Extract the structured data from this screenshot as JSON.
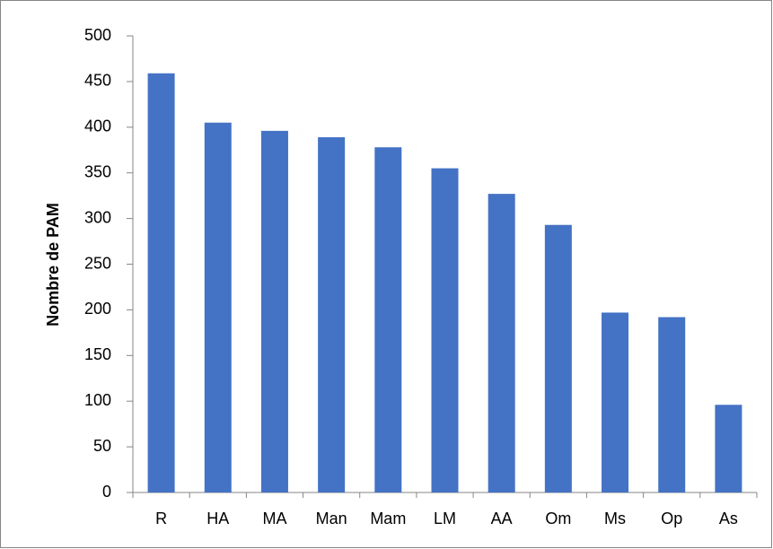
{
  "chart_data": {
    "type": "bar",
    "y_label": "Nombre de PAM",
    "categories": [
      "R",
      "HA",
      "MA",
      "Man",
      "Mam",
      "LM",
      "AA",
      "Om",
      "Ms",
      "Op",
      "As"
    ],
    "values": [
      459,
      405,
      396,
      389,
      378,
      355,
      327,
      293,
      197,
      192,
      96
    ],
    "color": "#4472c4",
    "ylim": [
      0,
      500
    ],
    "yticks": [
      0,
      50,
      100,
      150,
      200,
      250,
      300,
      350,
      400,
      450,
      500
    ],
    "grid": false
  }
}
